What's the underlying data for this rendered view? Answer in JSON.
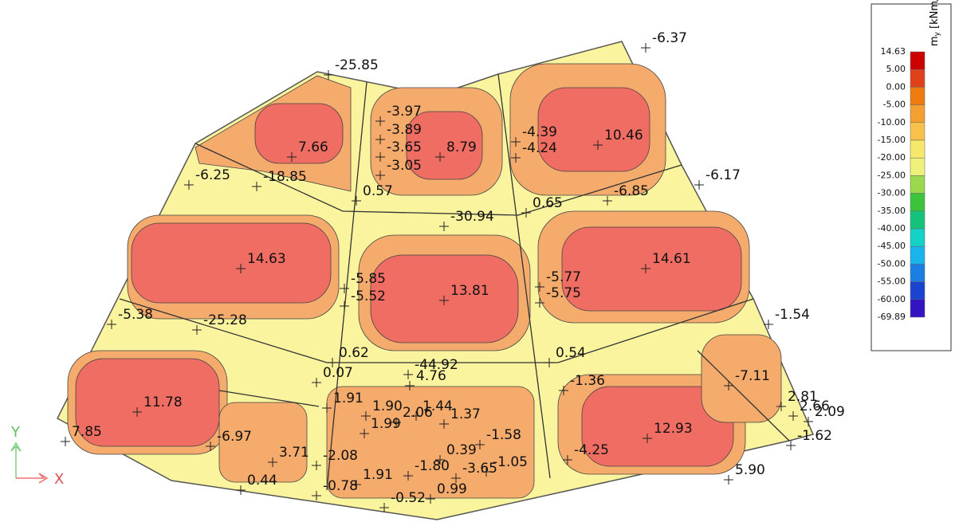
{
  "legend": {
    "symbol": "m",
    "subscript": "y",
    "unit": "[kNm/m]",
    "levels": [
      "14.63",
      "5.00",
      "0.00",
      "-5.00",
      "-10.00",
      "-15.00",
      "-20.00",
      "-25.00",
      "-30.00",
      "-35.00",
      "-40.00",
      "-45.00",
      "-50.00",
      "-55.00",
      "-60.00",
      "-69.89"
    ],
    "colors": [
      "#cc0000",
      "#e0401a",
      "#ee7a10",
      "#f4a030",
      "#f8c24a",
      "#f6e86a",
      "#eef27a",
      "#9ad84e",
      "#3cc43c",
      "#14c47a",
      "#14d2c8",
      "#18b4ec",
      "#1a7ee2",
      "#1a44d0",
      "#3414c0"
    ]
  },
  "axes": {
    "y": "Y",
    "x": "X"
  },
  "labels": [
    "-6.37",
    "-25.85",
    "10.46",
    "7.66",
    "8.79",
    "-3.97",
    "-3.89",
    "-3.65",
    "-3.05",
    "-4.39",
    "-4.24",
    "-6.25",
    "-18.85",
    "0.57",
    "-6.17",
    "-6.85",
    "0.65",
    "-30.94",
    "14.63",
    "14.61",
    "-5.85",
    "-5.52",
    "13.81",
    "-5.77",
    "-5.75",
    "-1.54",
    "-5.38",
    "-25.28",
    "0.62",
    "0.54",
    "-44.92",
    "0.07",
    "4.76",
    "-1.36",
    "-7.11",
    "11.78",
    "7.85",
    "1.91",
    "1.90",
    "1.44",
    "2.06",
    "1.99",
    "1.37",
    "-1.58",
    "12.93",
    "2.81",
    "2.66",
    "2.09",
    "-1.62",
    "-6.97",
    "3.71",
    "0.39",
    "-4.25",
    "-2.08",
    "-1.80",
    "-3.65",
    "-1.05",
    "0.44",
    "1.91",
    "-0.78",
    "0.99",
    "-0.52",
    "5.90"
  ]
}
